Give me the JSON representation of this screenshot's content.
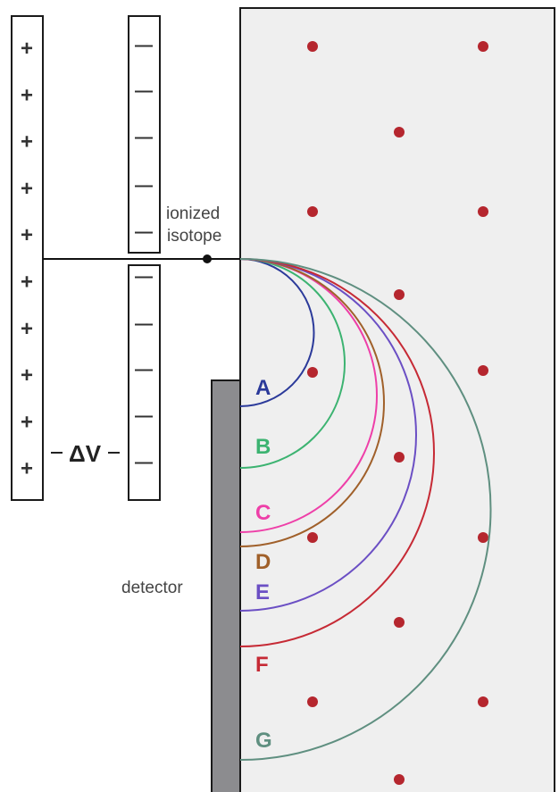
{
  "labels": {
    "ionized_isotope_line1": "ionized",
    "ionized_isotope_line2": "isotope",
    "detector": "detector",
    "delta_v": "ΔV"
  },
  "plates": {
    "positive_sign": "+",
    "negative_sign": "—"
  },
  "trajectories": [
    {
      "label": "A",
      "color": "#2b3a9a"
    },
    {
      "label": "B",
      "color": "#3cb371"
    },
    {
      "label": "C",
      "color": "#ee3fa8"
    },
    {
      "label": "D",
      "color": "#a0602a"
    },
    {
      "label": "E",
      "color": "#6b4fc4"
    },
    {
      "label": "F",
      "color": "#c62a35"
    },
    {
      "label": "G",
      "color": "#5f8f80"
    }
  ],
  "colors": {
    "field_background": "#efefef",
    "field_dot": "#b5262e",
    "detector": "#8c8c8f"
  }
}
